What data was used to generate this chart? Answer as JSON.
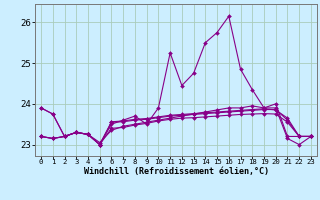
{
  "xlabel": "Windchill (Refroidissement éolien,°C)",
  "bg_color": "#cceeff",
  "grid_color": "#aaccbb",
  "line_color": "#880088",
  "x_ticks": [
    0,
    1,
    2,
    3,
    4,
    5,
    6,
    7,
    8,
    9,
    10,
    11,
    12,
    13,
    14,
    15,
    16,
    17,
    18,
    19,
    20,
    21,
    22,
    23
  ],
  "ylim": [
    22.72,
    26.45
  ],
  "yticks": [
    23,
    24,
    25,
    26
  ],
  "series": [
    [
      23.9,
      23.75,
      23.2,
      23.3,
      23.25,
      23.0,
      23.5,
      23.6,
      23.7,
      23.5,
      23.9,
      25.25,
      24.45,
      24.75,
      25.5,
      25.75,
      26.15,
      24.85,
      24.35,
      23.9,
      24.0,
      23.2,
      23.2,
      23.2
    ],
    [
      23.9,
      23.75,
      23.2,
      23.3,
      23.25,
      23.05,
      23.35,
      23.45,
      23.5,
      23.55,
      23.6,
      23.65,
      23.7,
      23.75,
      23.8,
      23.85,
      23.9,
      23.9,
      23.95,
      23.9,
      23.9,
      23.15,
      23.0,
      23.2
    ],
    [
      23.2,
      23.15,
      23.2,
      23.3,
      23.25,
      23.0,
      23.4,
      23.42,
      23.48,
      23.52,
      23.58,
      23.62,
      23.65,
      23.66,
      23.68,
      23.7,
      23.72,
      23.74,
      23.75,
      23.76,
      23.75,
      23.55,
      23.2,
      23.2
    ],
    [
      23.2,
      23.15,
      23.2,
      23.3,
      23.25,
      23.0,
      23.56,
      23.58,
      23.62,
      23.64,
      23.68,
      23.72,
      23.74,
      23.76,
      23.78,
      23.8,
      23.82,
      23.84,
      23.86,
      23.88,
      23.85,
      23.65,
      23.2,
      23.2
    ],
    [
      23.2,
      23.15,
      23.2,
      23.3,
      23.25,
      23.0,
      23.55,
      23.56,
      23.6,
      23.62,
      23.66,
      23.7,
      23.72,
      23.74,
      23.76,
      23.78,
      23.8,
      23.82,
      23.84,
      23.86,
      23.86,
      23.6,
      23.2,
      23.2
    ]
  ]
}
